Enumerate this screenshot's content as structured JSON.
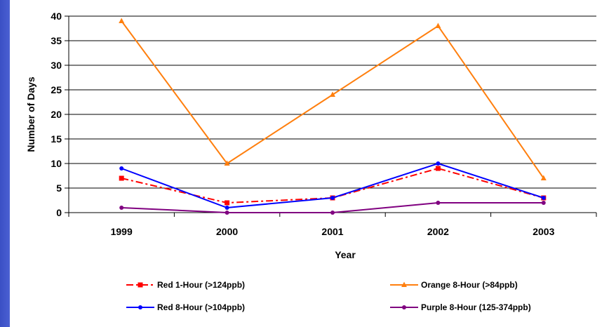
{
  "chart_data": {
    "type": "line",
    "title": "",
    "xlabel": "Year",
    "ylabel": "Number of Days",
    "categories": [
      "1999",
      "2000",
      "2001",
      "2002",
      "2003"
    ],
    "ylim": [
      0,
      40
    ],
    "yticks": [
      0,
      5,
      10,
      15,
      20,
      25,
      30,
      35,
      40
    ],
    "grid": true,
    "legend_position": "bottom",
    "series": [
      {
        "name": "Red 1-Hour (>124ppb)",
        "values": [
          7,
          2,
          3,
          9,
          3
        ],
        "color": "#ff0000",
        "dash": "dashdot",
        "marker": "square"
      },
      {
        "name": "Orange 8-Hour (>84ppb)",
        "values": [
          39,
          10,
          24,
          38,
          7
        ],
        "color": "#ff7f0e",
        "dash": "solid",
        "marker": "triangle"
      },
      {
        "name": "Red 8-Hour (>104ppb)",
        "values": [
          9,
          1,
          3,
          10,
          3
        ],
        "color": "#0000ff",
        "dash": "solid",
        "marker": "circle"
      },
      {
        "name": "Purple 8-Hour (125-374ppb)",
        "values": [
          1,
          0,
          0,
          2,
          2
        ],
        "color": "#800080",
        "dash": "solid",
        "marker": "circle"
      }
    ]
  }
}
